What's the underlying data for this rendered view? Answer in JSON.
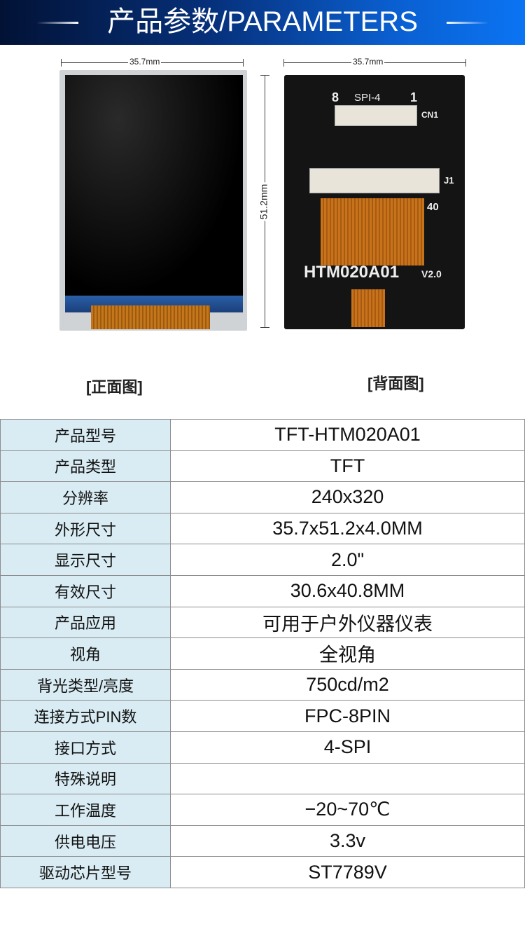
{
  "header": {
    "title": "产品参数/PARAMETERS"
  },
  "front": {
    "width_label": "35.7mm",
    "height_label": "51.2mm",
    "caption": "[正面图]"
  },
  "back": {
    "width_label": "35.7mm",
    "caption": "[背面图]",
    "pcb": {
      "connector_label": "SPI-4",
      "cn1": "CN1",
      "j1": "J1",
      "model": "HTM020A01",
      "version": "V2.0",
      "pin8": "8",
      "pin1": "1",
      "pin40": "40"
    }
  },
  "specs": [
    {
      "label": "产品型号",
      "value": "TFT-HTM020A01"
    },
    {
      "label": "产品类型",
      "value": "TFT"
    },
    {
      "label": "分辨率",
      "value": "240x320"
    },
    {
      "label": "外形尺寸",
      "value": "35.7x51.2x4.0MM"
    },
    {
      "label": "显示尺寸",
      "value": "2.0\""
    },
    {
      "label": "有效尺寸",
      "value": "30.6x40.8MM"
    },
    {
      "label": "产品应用",
      "value": "可用于户外仪器仪表"
    },
    {
      "label": "视角",
      "value": "全视角"
    },
    {
      "label": "背光类型/亮度",
      "value": "750cd/m2"
    },
    {
      "label": "连接方式PIN数",
      "value": "FPC-8PIN"
    },
    {
      "label": "接口方式",
      "value": "4-SPI"
    },
    {
      "label": "特殊说明",
      "value": ""
    },
    {
      "label": "工作温度",
      "value": "−20~70℃"
    },
    {
      "label": "供电电压",
      "value": "3.3v"
    },
    {
      "label": "驱动芯片型号",
      "value": "ST7789V"
    }
  ]
}
